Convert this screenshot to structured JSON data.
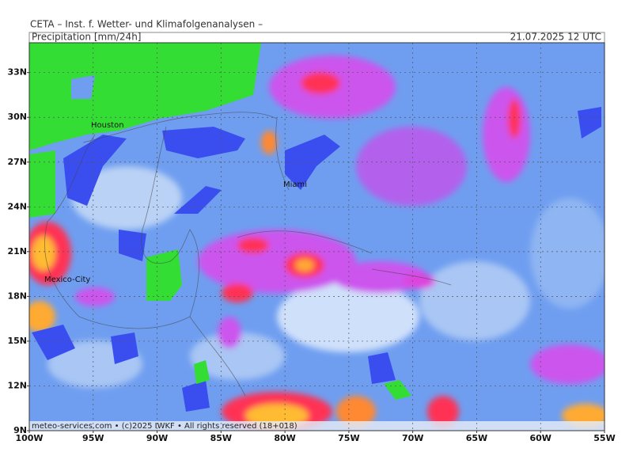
{
  "header": {
    "source": "CETA – Inst. f. Wetter- und Klimafolgenanalysen –",
    "title": "Precipitation [mm/24h]",
    "date": "21.07.2025 12 UTC"
  },
  "map": {
    "lat_range": [
      9,
      35
    ],
    "lon_range": [
      -100,
      -55
    ],
    "lat_ticks": [
      {
        "value": 33,
        "label": "33N"
      },
      {
        "value": 30,
        "label": "30N"
      },
      {
        "value": 27,
        "label": "27N"
      },
      {
        "value": 24,
        "label": "24N"
      },
      {
        "value": 21,
        "label": "21N"
      },
      {
        "value": 18,
        "label": "18N"
      },
      {
        "value": 15,
        "label": "15N"
      },
      {
        "value": 12,
        "label": "12N"
      },
      {
        "value": 9,
        "label": "9N"
      }
    ],
    "lon_ticks": [
      {
        "value": -100,
        "label": "100W"
      },
      {
        "value": -95,
        "label": "95W"
      },
      {
        "value": -90,
        "label": "90W"
      },
      {
        "value": -85,
        "label": "85W"
      },
      {
        "value": -80,
        "label": "80W"
      },
      {
        "value": -75,
        "label": "75W"
      },
      {
        "value": -70,
        "label": "70W"
      },
      {
        "value": -65,
        "label": "65W"
      },
      {
        "value": -60,
        "label": "60W"
      },
      {
        "value": -55,
        "label": "55W"
      }
    ],
    "grid": true,
    "cities": [
      "Houston",
      "Miami",
      "Mexico-City"
    ]
  },
  "footer": "meteo-services.com • (c)2025 IWKF • All rights reserved (18+018)"
}
